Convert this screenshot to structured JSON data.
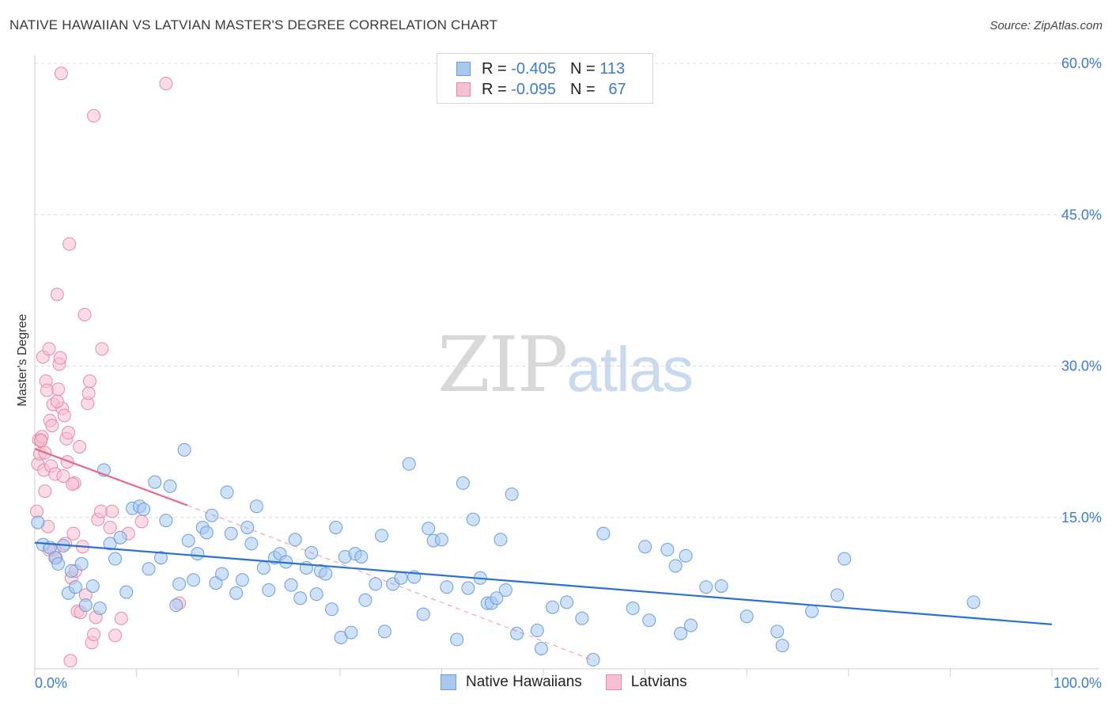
{
  "title": "NATIVE HAWAIIAN VS LATVIAN MASTER'S DEGREE CORRELATION CHART",
  "source": "Source: ZipAtlas.com",
  "watermark": {
    "zip": "ZIP",
    "atlas": "atlas"
  },
  "legend": {
    "rows": [
      {
        "r_label": "R =",
        "r_value": "-0.405",
        "n_label": "N =",
        "n_value": "113",
        "color": "#a8c8f0",
        "border": "#6c9fd8"
      },
      {
        "r_label": "R =",
        "r_value": "-0.095",
        "n_label": "N =",
        "n_value": "67",
        "color": "#f7bfd0",
        "border": "#e58aa8"
      }
    ]
  },
  "bottom_legend": [
    {
      "label": "Native Hawaiians",
      "color": "#a8c8f0",
      "border": "#6c9fd8"
    },
    {
      "label": "Latvians",
      "color": "#f7bfd0",
      "border": "#e58aa8"
    }
  ],
  "chart_data": {
    "type": "scatter",
    "title": "NATIVE HAWAIIAN VS LATVIAN MASTER'S DEGREE CORRELATION CHART",
    "xlabel": "",
    "ylabel": "Master's Degree",
    "xlim": [
      0,
      100
    ],
    "ylim": [
      0,
      60
    ],
    "x_tick_labels": [
      "0.0%",
      "100.0%"
    ],
    "y_tick_labels": [
      "15.0%",
      "30.0%",
      "45.0%",
      "60.0%"
    ],
    "y_ticks": [
      15,
      30,
      45,
      60
    ],
    "series": [
      {
        "name": "Native Hawaiians",
        "color": "#a8c8f0",
        "stroke": "#6c9fd8",
        "trend_color": "#2a72d0",
        "trend": {
          "x": [
            0,
            100
          ],
          "y": [
            12.5,
            4.4
          ]
        },
        "points": [
          [
            0.3,
            14.5
          ],
          [
            0.8,
            12.3
          ],
          [
            1.5,
            12.0
          ],
          [
            2.0,
            11.0
          ],
          [
            2.3,
            10.4
          ],
          [
            2.8,
            12.2
          ],
          [
            3.3,
            7.5
          ],
          [
            3.6,
            9.7
          ],
          [
            4.0,
            8.1
          ],
          [
            4.6,
            10.4
          ],
          [
            5.0,
            6.3
          ],
          [
            5.7,
            8.2
          ],
          [
            6.4,
            6.0
          ],
          [
            6.8,
            19.7
          ],
          [
            7.4,
            12.4
          ],
          [
            7.9,
            10.9
          ],
          [
            8.4,
            13.0
          ],
          [
            9.0,
            7.6
          ],
          [
            9.6,
            15.9
          ],
          [
            10.3,
            16.1
          ],
          [
            10.7,
            15.8
          ],
          [
            11.2,
            9.9
          ],
          [
            11.8,
            18.5
          ],
          [
            12.4,
            11.0
          ],
          [
            12.9,
            14.7
          ],
          [
            13.3,
            18.1
          ],
          [
            13.9,
            6.3
          ],
          [
            14.2,
            8.4
          ],
          [
            14.7,
            21.7
          ],
          [
            15.1,
            12.7
          ],
          [
            15.6,
            8.8
          ],
          [
            16.0,
            11.4
          ],
          [
            16.5,
            14.0
          ],
          [
            16.9,
            13.5
          ],
          [
            17.4,
            15.2
          ],
          [
            17.8,
            8.5
          ],
          [
            18.4,
            9.4
          ],
          [
            18.9,
            17.5
          ],
          [
            19.3,
            13.4
          ],
          [
            19.8,
            7.5
          ],
          [
            20.4,
            8.8
          ],
          [
            20.9,
            14.0
          ],
          [
            21.3,
            12.4
          ],
          [
            21.8,
            16.1
          ],
          [
            22.5,
            10.0
          ],
          [
            23.0,
            7.8
          ],
          [
            23.6,
            11.0
          ],
          [
            24.1,
            11.4
          ],
          [
            24.7,
            10.6
          ],
          [
            25.2,
            8.3
          ],
          [
            25.6,
            12.8
          ],
          [
            26.1,
            7.0
          ],
          [
            26.7,
            10.0
          ],
          [
            27.2,
            11.5
          ],
          [
            27.7,
            7.4
          ],
          [
            28.1,
            9.7
          ],
          [
            28.6,
            9.4
          ],
          [
            29.2,
            5.9
          ],
          [
            29.6,
            14.0
          ],
          [
            30.1,
            3.1
          ],
          [
            30.5,
            11.1
          ],
          [
            31.1,
            3.6
          ],
          [
            31.5,
            11.4
          ],
          [
            32.1,
            11.1
          ],
          [
            32.5,
            6.8
          ],
          [
            33.5,
            8.4
          ],
          [
            34.1,
            13.2
          ],
          [
            34.4,
            3.7
          ],
          [
            35.2,
            8.4
          ],
          [
            36.0,
            9.0
          ],
          [
            36.8,
            20.3
          ],
          [
            37.3,
            9.1
          ],
          [
            38.2,
            5.4
          ],
          [
            38.7,
            13.9
          ],
          [
            39.2,
            12.7
          ],
          [
            40.0,
            12.8
          ],
          [
            40.5,
            8.1
          ],
          [
            41.5,
            2.9
          ],
          [
            42.1,
            18.4
          ],
          [
            42.6,
            8.0
          ],
          [
            43.1,
            14.8
          ],
          [
            43.8,
            9.0
          ],
          [
            44.5,
            6.5
          ],
          [
            44.9,
            6.5
          ],
          [
            45.4,
            7.0
          ],
          [
            45.8,
            12.8
          ],
          [
            46.3,
            7.8
          ],
          [
            46.9,
            17.3
          ],
          [
            47.4,
            3.5
          ],
          [
            49.4,
            3.8
          ],
          [
            50.9,
            6.1
          ],
          [
            52.3,
            6.6
          ],
          [
            53.8,
            5.0
          ],
          [
            54.9,
            0.9
          ],
          [
            55.9,
            13.4
          ],
          [
            58.8,
            6.0
          ],
          [
            60.0,
            12.1
          ],
          [
            60.4,
            4.8
          ],
          [
            62.2,
            11.8
          ],
          [
            63.0,
            10.2
          ],
          [
            63.5,
            3.5
          ],
          [
            64.0,
            11.2
          ],
          [
            64.5,
            4.3
          ],
          [
            66.0,
            8.1
          ],
          [
            67.5,
            8.2
          ],
          [
            70.0,
            5.2
          ],
          [
            73.0,
            3.7
          ],
          [
            73.5,
            2.3
          ],
          [
            76.4,
            5.7
          ],
          [
            78.9,
            7.3
          ],
          [
            79.6,
            10.9
          ],
          [
            92.3,
            6.6
          ],
          [
            49.8,
            2.0
          ]
        ]
      },
      {
        "name": "Latvians",
        "color": "#f7bfd0",
        "stroke": "#e58aa8",
        "trend_color": "#e8688f",
        "trend": {
          "x": [
            0,
            15
          ],
          "y": [
            21.8,
            16.2
          ]
        },
        "trend_dashed": {
          "x": [
            15,
            55
          ],
          "y": [
            16.2,
            0.8
          ]
        },
        "points": [
          [
            0.2,
            15.6
          ],
          [
            0.3,
            20.3
          ],
          [
            0.4,
            22.7
          ],
          [
            0.5,
            21.3
          ],
          [
            0.6,
            22.7
          ],
          [
            0.7,
            23.0
          ],
          [
            0.8,
            30.9
          ],
          [
            0.9,
            19.7
          ],
          [
            1.0,
            17.6
          ],
          [
            1.1,
            28.5
          ],
          [
            1.2,
            27.6
          ],
          [
            1.3,
            14.1
          ],
          [
            1.4,
            31.7
          ],
          [
            1.5,
            24.6
          ],
          [
            1.6,
            20.1
          ],
          [
            1.7,
            24.1
          ],
          [
            1.8,
            26.2
          ],
          [
            1.9,
            11.8
          ],
          [
            2.0,
            19.3
          ],
          [
            2.1,
            11.0
          ],
          [
            2.2,
            37.1
          ],
          [
            2.3,
            27.7
          ],
          [
            2.4,
            30.2
          ],
          [
            2.5,
            30.8
          ],
          [
            2.6,
            59.0
          ],
          [
            2.7,
            25.8
          ],
          [
            2.8,
            19.1
          ],
          [
            2.9,
            25.1
          ],
          [
            3.0,
            12.4
          ],
          [
            3.1,
            22.8
          ],
          [
            3.2,
            20.5
          ],
          [
            3.3,
            23.4
          ],
          [
            3.4,
            42.1
          ],
          [
            3.5,
            0.8
          ],
          [
            3.6,
            9.0
          ],
          [
            3.8,
            13.4
          ],
          [
            3.9,
            18.4
          ],
          [
            4.0,
            9.7
          ],
          [
            4.2,
            5.7
          ],
          [
            4.4,
            22.0
          ],
          [
            4.5,
            5.6
          ],
          [
            4.7,
            12.1
          ],
          [
            4.9,
            35.1
          ],
          [
            5.0,
            7.3
          ],
          [
            5.2,
            26.3
          ],
          [
            5.3,
            27.3
          ],
          [
            5.4,
            28.5
          ],
          [
            5.6,
            2.6
          ],
          [
            5.8,
            54.8
          ],
          [
            6.0,
            5.1
          ],
          [
            6.2,
            14.8
          ],
          [
            6.5,
            15.6
          ],
          [
            6.6,
            31.7
          ],
          [
            7.4,
            14.0
          ],
          [
            7.6,
            15.6
          ],
          [
            7.9,
            3.3
          ],
          [
            8.5,
            5.0
          ],
          [
            9.2,
            13.4
          ],
          [
            10.5,
            14.6
          ],
          [
            12.9,
            58.0
          ],
          [
            14.2,
            6.5
          ],
          [
            1.4,
            11.8
          ],
          [
            3.7,
            18.3
          ],
          [
            2.2,
            26.5
          ],
          [
            5.8,
            3.4
          ],
          [
            1.0,
            21.4
          ],
          [
            0.6,
            22.6
          ]
        ]
      }
    ]
  }
}
